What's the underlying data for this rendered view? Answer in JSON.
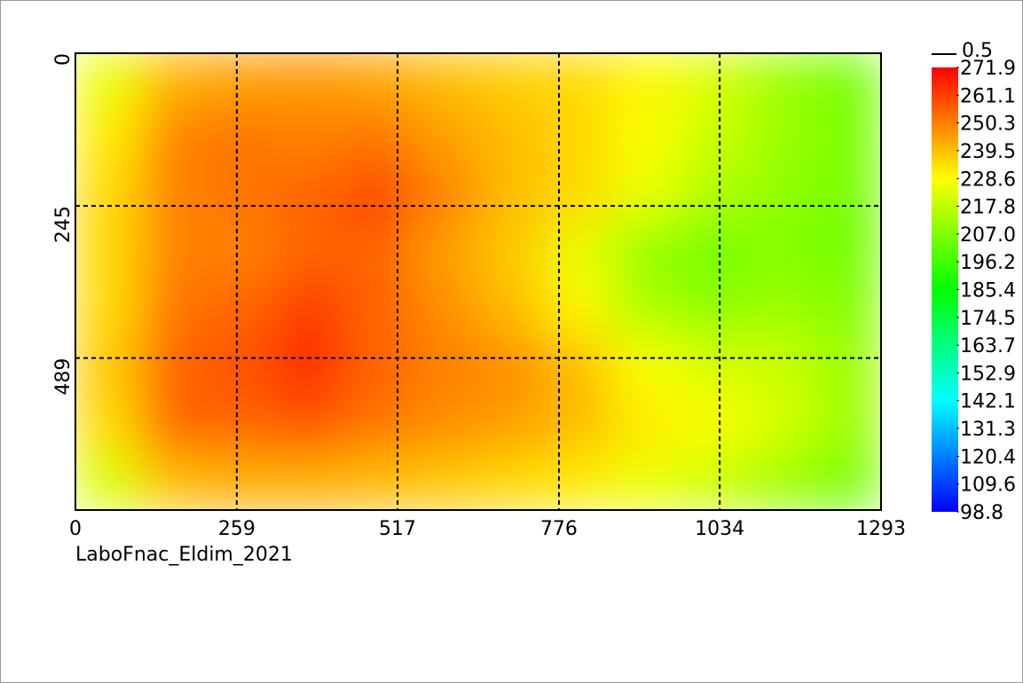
{
  "chart_data": {
    "type": "heatmap",
    "caption": "LaboFnac_Eldim_2021",
    "legend_label": "0.5",
    "xlim": [
      0,
      1293
    ],
    "ylim": [
      0,
      733
    ],
    "xticks": [
      0,
      259,
      517,
      776,
      1034,
      1293
    ],
    "yticks": [
      0,
      245,
      489
    ],
    "grid": true,
    "colormap": [
      "#0000ff",
      "#00ffff",
      "#00ff00",
      "#ffff00",
      "#ff0000"
    ],
    "clim": [
      98.8,
      271.9
    ],
    "cticks": [
      271.9,
      261.1,
      250.3,
      239.5,
      228.6,
      217.8,
      {
        "value": 207,
        "label": "207.0"
      },
      196.2,
      185.4,
      174.5,
      163.7,
      152.9,
      142.1,
      131.3,
      120.4,
      109.6,
      98.8
    ],
    "z": [
      [
        225,
        242,
        245,
        246,
        244,
        240,
        237,
        235,
        230,
        222,
        212,
        205
      ],
      [
        232,
        250,
        252,
        250,
        252,
        245,
        240,
        235,
        228,
        220,
        212,
        206
      ],
      [
        235,
        250,
        252,
        255,
        260,
        250,
        240,
        235,
        225,
        215,
        210,
        205
      ],
      [
        235,
        250,
        250,
        255,
        255,
        245,
        238,
        225,
        210,
        205,
        208,
        205
      ],
      [
        235,
        252,
        255,
        262,
        255,
        248,
        240,
        230,
        215,
        210,
        212,
        208
      ],
      [
        238,
        255,
        258,
        265,
        255,
        250,
        248,
        240,
        228,
        222,
        220,
        212
      ],
      [
        235,
        255,
        255,
        258,
        252,
        248,
        245,
        240,
        232,
        228,
        222,
        212
      ],
      [
        222,
        240,
        242,
        242,
        240,
        238,
        235,
        232,
        225,
        220,
        212,
        205
      ]
    ]
  }
}
